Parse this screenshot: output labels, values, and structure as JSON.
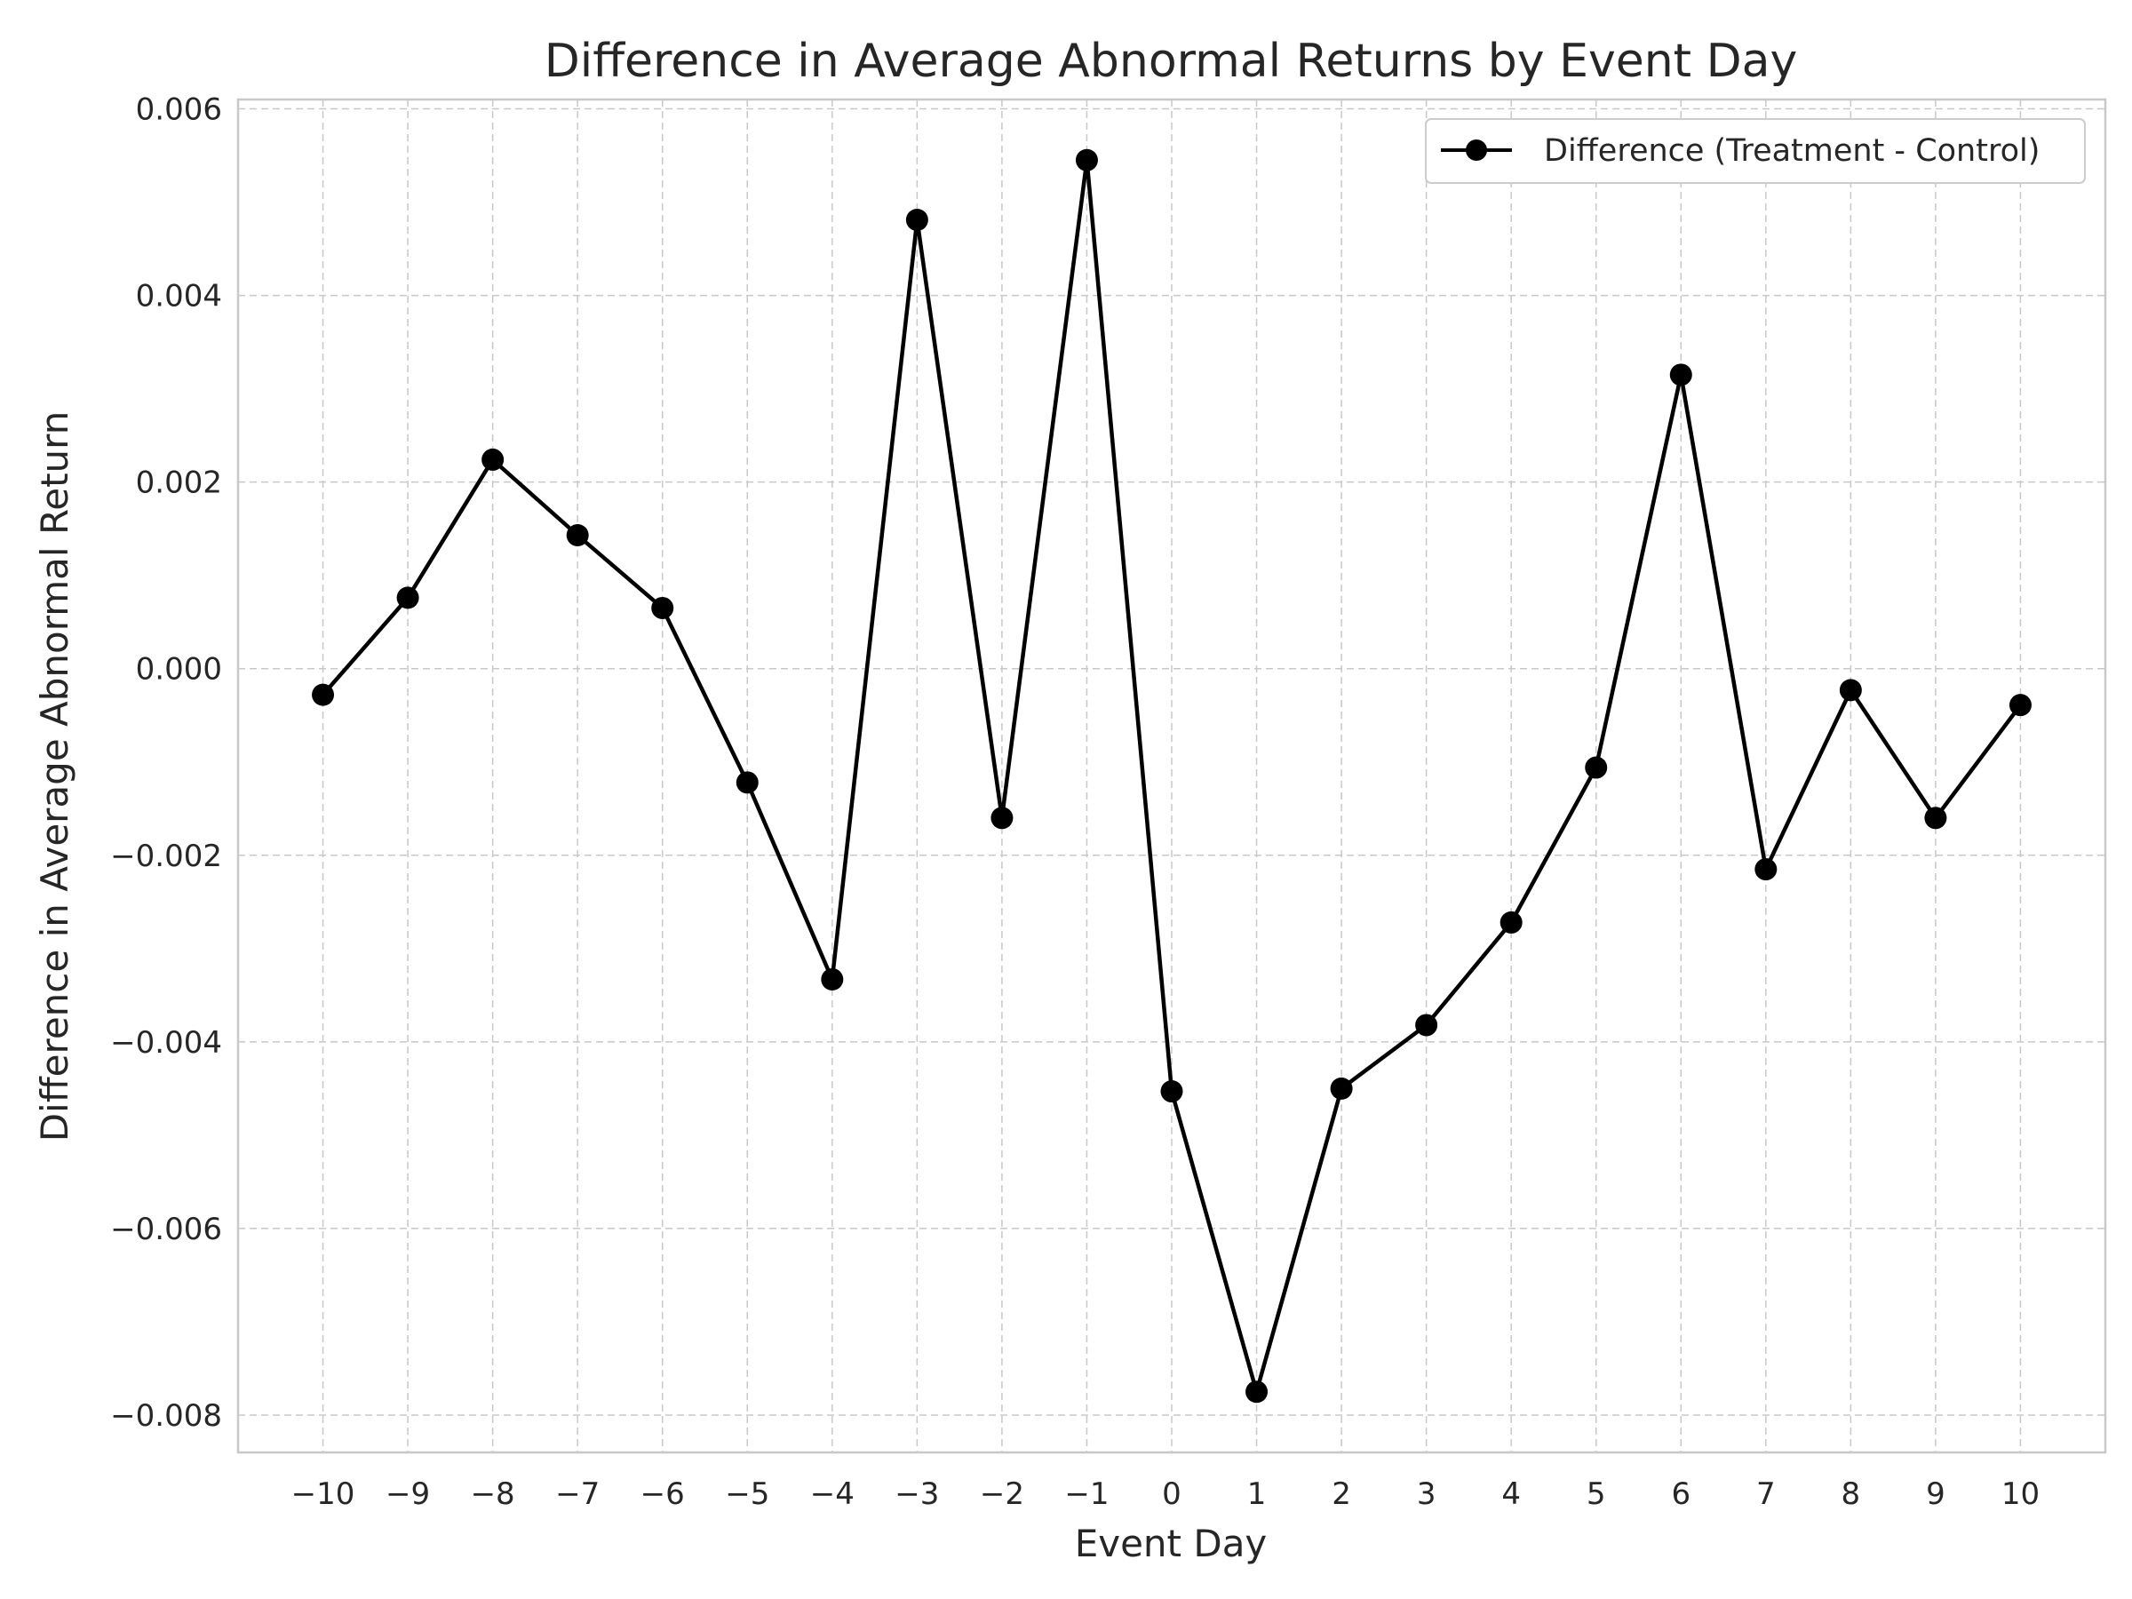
{
  "chart_data": {
    "type": "line",
    "title": "Difference in Average Abnormal Returns by Event Day",
    "xlabel": "Event Day",
    "ylabel": "Difference in Average Abnormal Return",
    "x": [
      -10,
      -9,
      -8,
      -7,
      -6,
      -5,
      -4,
      -3,
      -2,
      -1,
      0,
      1,
      2,
      3,
      4,
      5,
      6,
      7,
      8,
      9,
      10
    ],
    "x_tick_labels": [
      "−10",
      "−9",
      "−8",
      "−7",
      "−6",
      "−5",
      "−4",
      "−3",
      "−2",
      "−1",
      "0",
      "1",
      "2",
      "3",
      "4",
      "5",
      "6",
      "7",
      "8",
      "9",
      "10"
    ],
    "y_ticks": [
      -0.008,
      -0.006,
      -0.004,
      -0.002,
      0.0,
      0.002,
      0.004,
      0.006
    ],
    "y_tick_labels": [
      "−0.008",
      "−0.006",
      "−0.004",
      "−0.002",
      "0.000",
      "0.002",
      "0.004",
      "0.006"
    ],
    "xlim": [
      -11,
      11
    ],
    "ylim": [
      -0.0084,
      0.0061
    ],
    "grid": true,
    "legend_position": "top-right",
    "series": [
      {
        "name": "Difference (Treatment - Control)",
        "color": "#000000",
        "marker": "circle",
        "values": [
          -0.00028,
          0.00076,
          0.00224,
          0.00143,
          0.00065,
          -0.00122,
          -0.00333,
          0.00481,
          -0.0016,
          0.00545,
          -0.00453,
          -0.00775,
          -0.0045,
          -0.00382,
          -0.00272,
          -0.00106,
          0.00315,
          -0.00215,
          -0.00023,
          -0.0016,
          -0.00039
        ]
      }
    ]
  }
}
